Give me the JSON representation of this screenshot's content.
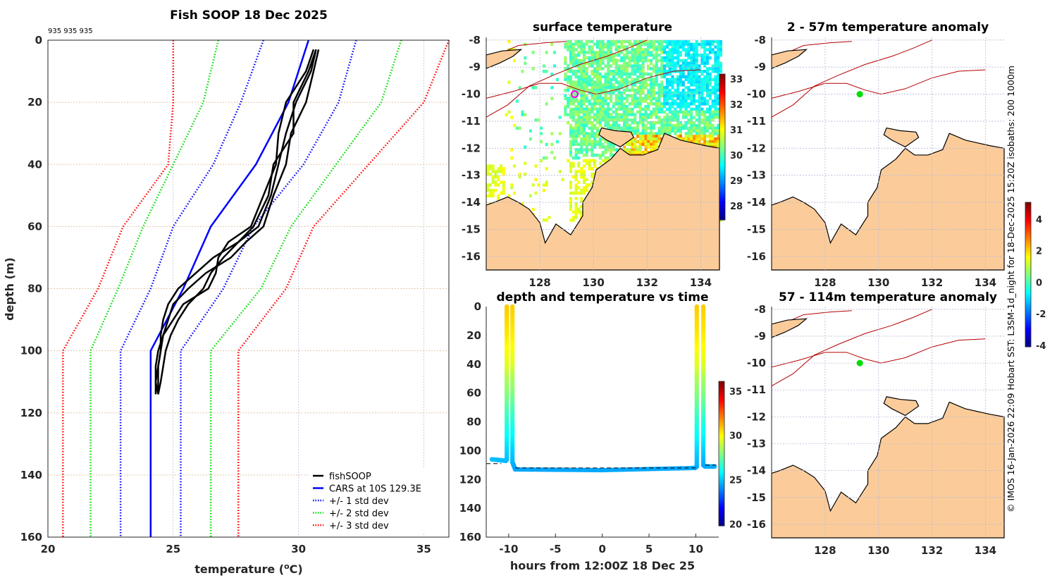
{
  "colors": {
    "fishsoop": "#000000",
    "cars": "#0000ff",
    "std1": "#0000ff",
    "std2": "#00dd00",
    "std3": "#ff0000",
    "land": "#fbcc9a",
    "isobath": "#b30000",
    "marker_sst": "#ff00ff",
    "marker_anom": "#00dd00"
  },
  "chart_data": [
    {
      "type": "line",
      "title": "Fish SOOP 18 Dec 2025",
      "annotation": "935 935 935",
      "xlabel": "temperature (",
      "xlabel_sup": "o",
      "xlabel_end": "C)",
      "ylabel": "depth (m)",
      "xlim": [
        20,
        36
      ],
      "ylim": [
        160,
        0
      ],
      "xticks": [
        "20",
        "25",
        "30",
        "35"
      ],
      "xtick_values": [
        20,
        25,
        30,
        35
      ],
      "yticks": [
        "0",
        "20",
        "40",
        "60",
        "80",
        "100",
        "120",
        "140",
        "160"
      ],
      "ytick_values": [
        0,
        20,
        40,
        60,
        80,
        100,
        120,
        140,
        160
      ],
      "legend_position": "bottom-right",
      "legend": [
        "fishSOOP",
        "CARS at 10S 129.3E",
        "+/- 1 std dev",
        "+/- 2 std dev",
        "+/- 3 std dev"
      ],
      "depth": [
        0,
        20,
        40,
        60,
        80,
        100,
        160
      ],
      "series": [
        {
          "name": "CARS at 10S 129.3E",
          "style": "solid",
          "color": "cars",
          "temp": [
            30.4,
            29.6,
            28.3,
            26.5,
            25.4,
            24.1,
            24.1
          ]
        },
        {
          "name": "+1 std dev",
          "style": "dotted",
          "color": "std1",
          "temp": [
            32.3,
            31.6,
            30.2,
            28.2,
            27.0,
            25.3,
            25.3
          ]
        },
        {
          "name": "-1 std dev",
          "style": "dotted",
          "color": "std1",
          "temp": [
            28.6,
            27.7,
            26.6,
            25.0,
            24.1,
            22.9,
            22.9
          ]
        },
        {
          "name": "+2 std dev",
          "style": "dotted",
          "color": "std2",
          "temp": [
            34.1,
            33.3,
            31.5,
            29.7,
            28.5,
            26.5,
            26.5
          ]
        },
        {
          "name": "-2 std dev",
          "style": "dotted",
          "color": "std2",
          "temp": [
            26.8,
            26.2,
            25.0,
            23.8,
            22.8,
            21.7,
            21.7
          ]
        },
        {
          "name": "+3 std dev",
          "style": "dotted",
          "color": "std3",
          "temp": [
            36.0,
            35.0,
            32.8,
            30.6,
            29.5,
            27.6,
            27.6
          ]
        },
        {
          "name": "-3 std dev",
          "style": "dotted",
          "color": "std3",
          "temp": [
            25.0,
            25.0,
            24.8,
            23.0,
            22.0,
            20.6,
            20.6
          ]
        }
      ],
      "fishsoop_profiles": [
        {
          "depth": [
            3,
            10,
            20,
            30,
            40,
            50,
            60,
            65,
            70,
            75,
            80,
            85,
            90,
            95,
            100,
            105,
            110,
            114
          ],
          "temp": [
            30.7,
            30.5,
            29.9,
            29.5,
            29.2,
            28.9,
            28.4,
            27.6,
            27.0,
            26.5,
            26.2,
            25.6,
            25.2,
            24.9,
            24.7,
            24.6,
            24.5,
            24.4
          ]
        },
        {
          "depth": [
            3,
            10,
            20,
            30,
            40,
            50,
            60,
            65,
            70,
            75,
            80,
            85,
            90,
            95,
            100,
            105,
            110,
            114
          ],
          "temp": [
            30.6,
            30.3,
            29.5,
            29.2,
            29.1,
            28.6,
            28.1,
            27.2,
            26.8,
            26.7,
            26.4,
            25.4,
            25.0,
            24.6,
            24.5,
            24.4,
            24.4,
            24.4
          ]
        },
        {
          "depth": [
            3,
            10,
            20,
            30,
            40,
            50,
            60,
            65,
            70,
            75,
            80,
            85,
            90,
            95,
            100,
            105,
            110,
            114
          ],
          "temp": [
            30.8,
            30.6,
            30.3,
            29.7,
            29.5,
            29.0,
            28.6,
            27.9,
            27.3,
            26.3,
            25.6,
            25.0,
            24.8,
            24.6,
            24.4,
            24.3,
            24.3,
            24.3
          ]
        },
        {
          "depth": [
            3,
            10,
            20,
            30,
            40,
            50,
            60,
            65,
            70,
            75,
            80,
            85,
            90,
            95,
            100,
            105,
            110,
            114
          ],
          "temp": [
            30.7,
            30.4,
            29.8,
            29.8,
            29.0,
            28.8,
            28.2,
            27.6,
            26.6,
            25.9,
            25.2,
            24.8,
            24.6,
            24.5,
            24.5,
            24.4,
            24.3,
            24.4
          ]
        }
      ]
    },
    {
      "type": "scatter",
      "title": "depth and temperature vs time",
      "xlabel": "hours from 12:00Z 18 Dec 25",
      "xlim": [
        -12.4,
        12.45
      ],
      "ylim": [
        160,
        0
      ],
      "xticks": [
        "-10",
        "-5",
        "0",
        "5",
        "10"
      ],
      "xtick_values": [
        -10,
        -5,
        0,
        5,
        10
      ],
      "yticks": [
        "0",
        "20",
        "40",
        "60",
        "80",
        "100",
        "120",
        "140",
        "160"
      ],
      "ytick_values": [
        0,
        20,
        40,
        60,
        80,
        100,
        120,
        140,
        160
      ],
      "colorbar": {
        "range": [
          19.8,
          36.1
        ],
        "ticks": [
          "20",
          "25",
          "30",
          "35"
        ],
        "tick_values": [
          20,
          25,
          30,
          35
        ]
      },
      "tracks": [
        {
          "time": [
            -11.8,
            -10.3,
            -10.2,
            -10.2,
            -10.2,
            -10.2
          ],
          "depth": [
            106,
            107,
            106,
            60,
            20,
            0
          ]
        },
        {
          "time": [
            -9.6,
            -9.6,
            -9.6,
            -9.3,
            0,
            9.9,
            10.1,
            10.1,
            10.1
          ],
          "depth": [
            0,
            60,
            108,
            113,
            113.5,
            112,
            111,
            60,
            0
          ]
        },
        {
          "time": [
            10.8,
            10.8,
            10.8,
            11.0,
            12.0
          ],
          "depth": [
            0,
            60,
            110,
            111,
            111
          ]
        }
      ],
      "profile_temp": {
        "depth": [
          0,
          20,
          40,
          50,
          60,
          80,
          100,
          113
        ],
        "temp": [
          30.8,
          30.3,
          29.5,
          28.6,
          28.0,
          26.5,
          25.2,
          24.5
        ]
      },
      "bottom_dashed": [
        {
          "time": [
            -12.4,
            -10.8
          ],
          "depth": [
            109,
            109
          ]
        },
        {
          "time": [
            -9.3,
            10.0
          ],
          "depth": [
            112,
            112
          ]
        },
        {
          "time": [
            11.0,
            12.2
          ],
          "depth": [
            110,
            110
          ]
        }
      ]
    },
    {
      "type": "heatmap",
      "title": "surface temperature",
      "xlim": [
        126.0,
        134.7
      ],
      "ylim": [
        -16.5,
        -7.9
      ],
      "xticks": [
        "128",
        "130",
        "132",
        "134"
      ],
      "xtick_values": [
        128,
        130,
        132,
        134
      ],
      "yticks": [
        "-8",
        "-9",
        "-10",
        "-11",
        "-12",
        "-13",
        "-14",
        "-15",
        "-16"
      ],
      "ytick_values": [
        -8,
        -9,
        -10,
        -11,
        -12,
        -13,
        -14,
        -15,
        -16
      ],
      "colorbar": {
        "range": [
          27.45,
          33.2
        ],
        "ticks": [
          "28",
          "29",
          "30",
          "31",
          "32",
          "33"
        ],
        "tick_values": [
          28,
          29,
          30,
          31,
          32,
          33
        ]
      },
      "marker": {
        "lon": 129.3,
        "lat": -10.0
      }
    },
    {
      "type": "heatmap",
      "title": "2 - 57m temperature anomaly",
      "xlim": [
        126.0,
        134.7
      ],
      "ylim": [
        -16.5,
        -7.9
      ],
      "xticks": [
        "128",
        "130",
        "132",
        "134"
      ],
      "xtick_values": [
        128,
        130,
        132,
        134
      ],
      "yticks": [
        "-8",
        "-9",
        "-10",
        "-11",
        "-12",
        "-13",
        "-14",
        "-15",
        "-16"
      ],
      "ytick_values": [
        -8,
        -9,
        -10,
        -11,
        -12,
        -13,
        -14,
        -15,
        -16
      ],
      "marker": {
        "lon": 129.3,
        "lat": -10.0
      }
    },
    {
      "type": "heatmap",
      "title": "57 - 114m temperature anomaly",
      "xlim": [
        126.0,
        134.7
      ],
      "ylim": [
        -16.5,
        -7.9
      ],
      "xticks": [
        "128",
        "130",
        "132",
        "134"
      ],
      "xtick_values": [
        128,
        130,
        132,
        134
      ],
      "yticks": [
        "-8",
        "-9",
        "-10",
        "-11",
        "-12",
        "-13",
        "-14",
        "-15",
        "-16"
      ],
      "ytick_values": [
        -8,
        -9,
        -10,
        -11,
        -12,
        -13,
        -14,
        -15,
        -16
      ],
      "marker": {
        "lon": 129.3,
        "lat": -10.0
      }
    }
  ],
  "anomaly_colorbar": {
    "range": [
      -4.1,
      5.07
    ],
    "ticks": [
      "-4",
      "-2",
      "0",
      "2",
      "4"
    ],
    "tick_values": [
      -4,
      -2,
      0,
      2,
      4
    ]
  },
  "credit": "© IMOS 16-Jan-2026 22:09 Hobart SST: L3SM-1d_night for 18-Dec-2025 15:20Z isobaths: 200  1000m"
}
